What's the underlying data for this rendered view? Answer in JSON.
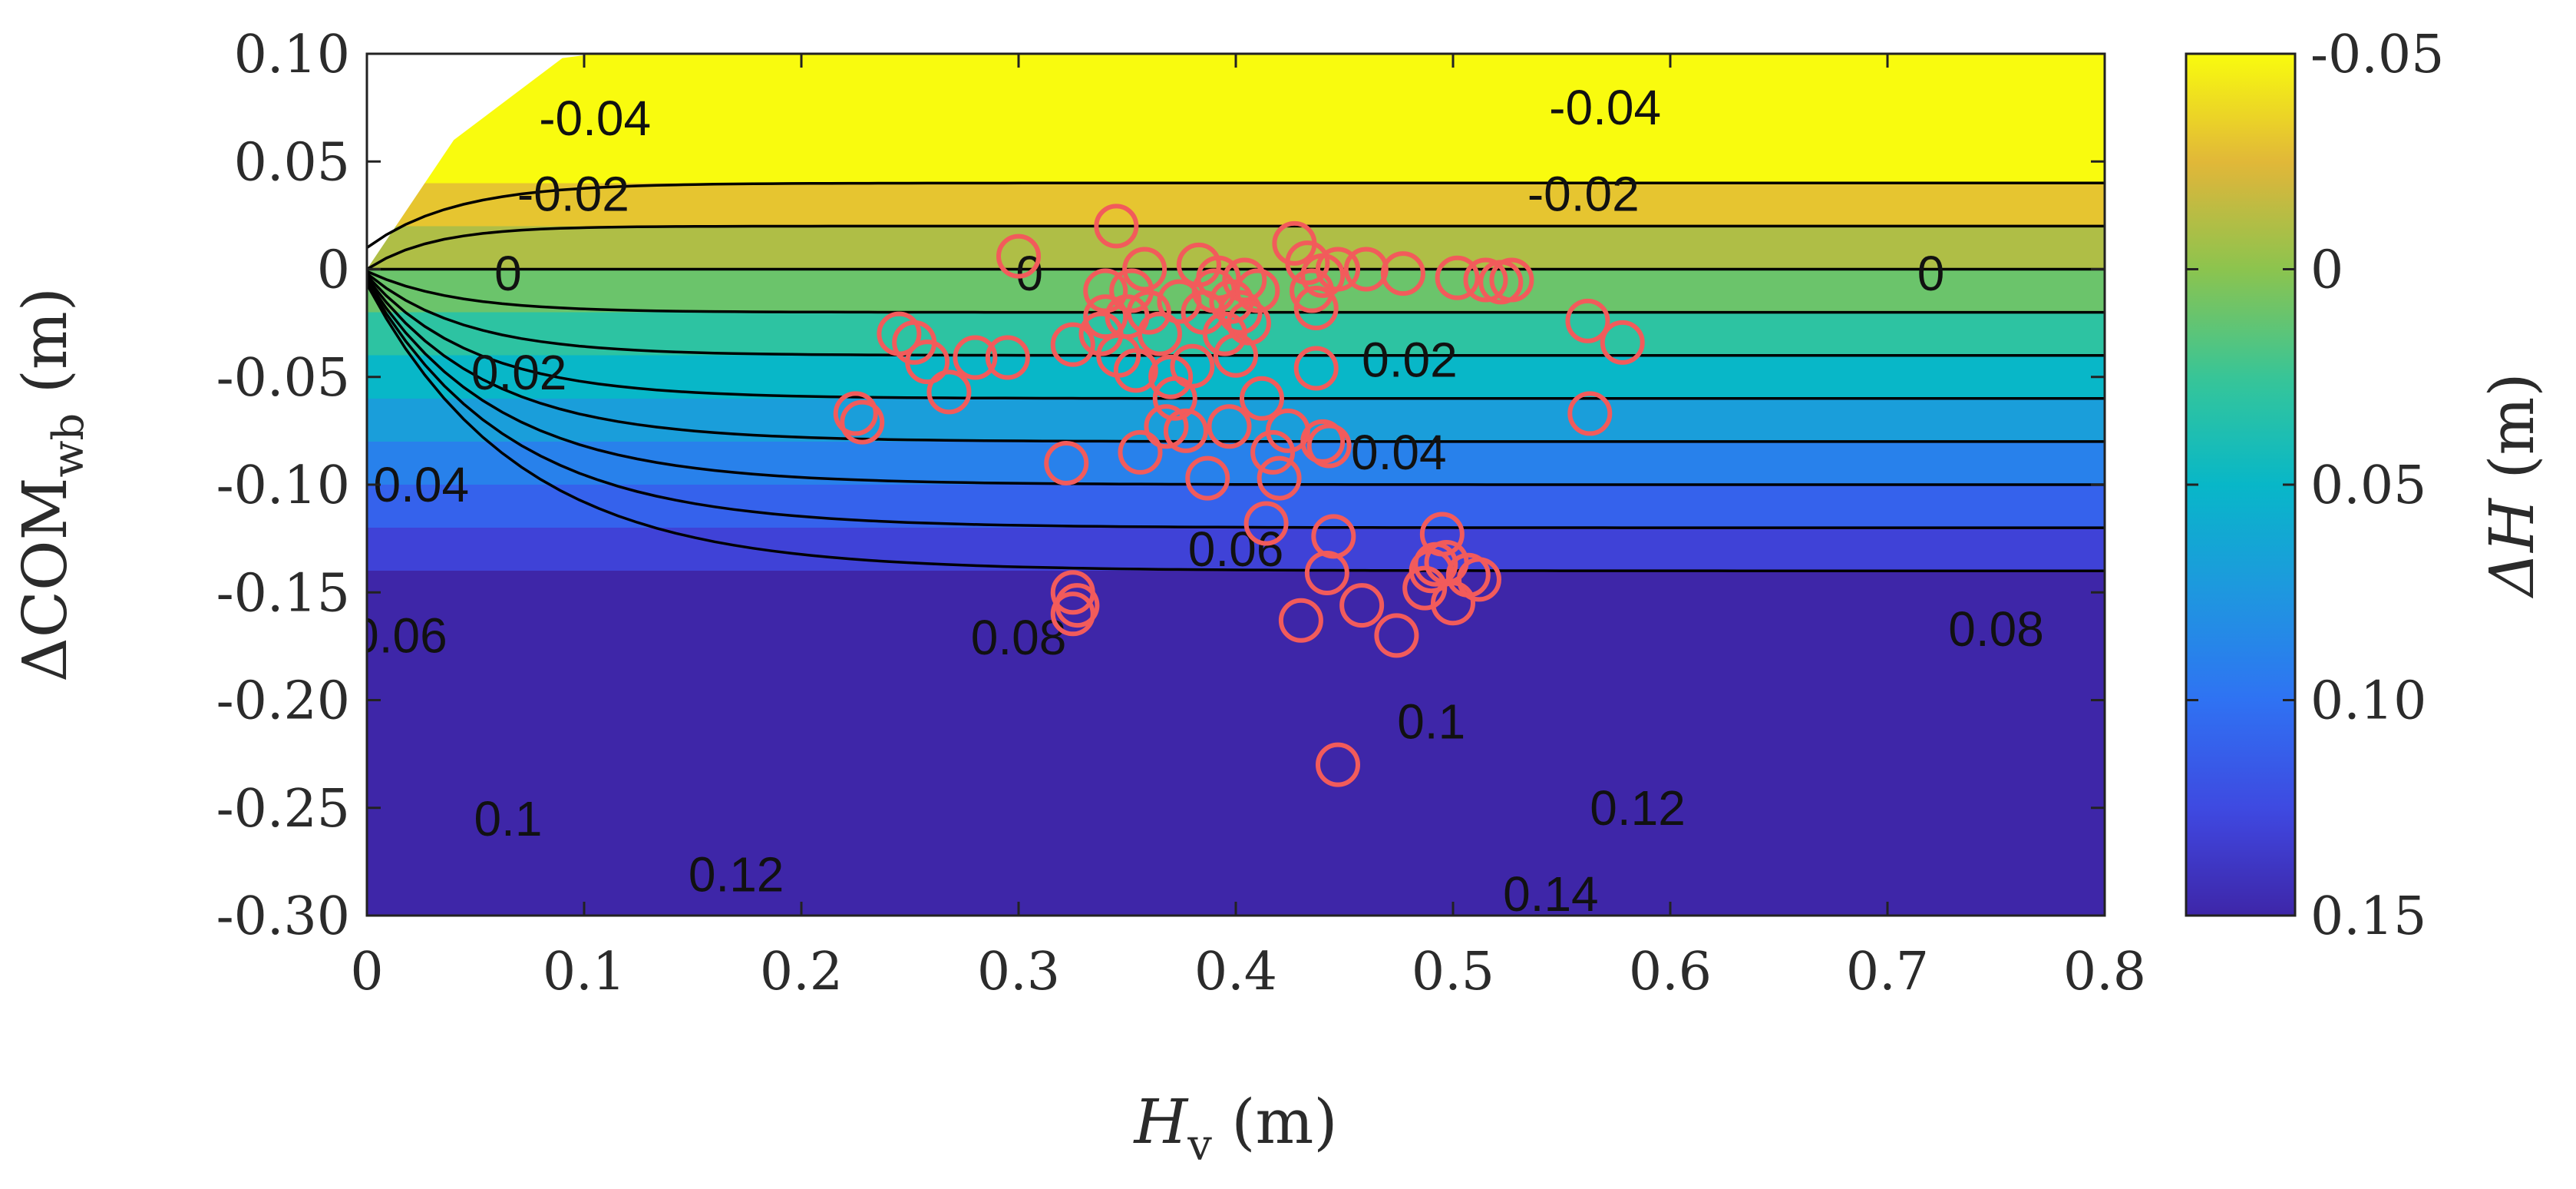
{
  "chart_data": {
    "type": "contour",
    "xlabel": {
      "main": "H",
      "sub": "v",
      "unit": " (m)"
    },
    "ylabel": {
      "main": "ΔCOM",
      "sub": "wb",
      "unit": " (m)"
    },
    "colorbar_label": {
      "main": "ΔH",
      "unit": " (m)"
    },
    "xlim": [
      0,
      0.8
    ],
    "ylim": [
      -0.3,
      0.1
    ],
    "x_ticks": [
      0,
      0.1,
      0.2,
      0.3,
      0.4,
      0.5,
      0.6,
      0.7,
      0.8
    ],
    "x_tick_labels": [
      "0",
      "0.1",
      "0.2",
      "0.3",
      "0.4",
      "0.5",
      "0.6",
      "0.7",
      "0.8"
    ],
    "y_ticks": [
      0.1,
      0.05,
      0,
      -0.05,
      -0.1,
      -0.15,
      -0.2,
      -0.25,
      -0.3
    ],
    "y_tick_labels": [
      "0.10",
      "0.05",
      "0",
      "-0.05",
      "-0.10",
      "-0.15",
      "-0.20",
      "-0.25",
      "-0.30"
    ],
    "colorbar": {
      "range": [
        -0.05,
        0.15
      ],
      "reversed": true,
      "ticks": [
        -0.05,
        0,
        0.05,
        0.1,
        0.15
      ],
      "tick_labels": [
        "-0.05",
        "0",
        "0.05",
        "0.10",
        "0.15"
      ],
      "colormap": "parula"
    },
    "contour_levels": [
      {
        "value": -0.04,
        "labels": [
          {
            "text": "-0.04",
            "x": 0.105,
            "y": 0.07
          },
          {
            "text": "-0.04",
            "x": 0.57,
            "y": 0.075
          }
        ]
      },
      {
        "value": -0.02,
        "labels": [
          {
            "text": "-0.02",
            "x": 0.095,
            "y": 0.035
          },
          {
            "text": "-0.02",
            "x": 0.56,
            "y": 0.035
          }
        ]
      },
      {
        "value": 0,
        "labels": [
          {
            "text": "0",
            "x": 0.065,
            "y": -0.002
          },
          {
            "text": "0",
            "x": 0.305,
            "y": -0.002
          },
          {
            "text": "0",
            "x": 0.72,
            "y": -0.002
          }
        ]
      },
      {
        "value": 0.02,
        "labels": [
          {
            "text": "0.02",
            "x": 0.07,
            "y": -0.048
          },
          {
            "text": "0.02",
            "x": 0.48,
            "y": -0.042
          }
        ]
      },
      {
        "value": 0.04,
        "labels": [
          {
            "text": "0.04",
            "x": 0.025,
            "y": -0.1
          },
          {
            "text": "0.04",
            "x": 0.475,
            "y": -0.085
          }
        ]
      },
      {
        "value": 0.06,
        "labels": [
          {
            "text": "0.06",
            "x": 0.015,
            "y": -0.17
          },
          {
            "text": "0.06",
            "x": 0.4,
            "y": -0.13
          }
        ]
      },
      {
        "value": 0.08,
        "labels": [
          {
            "text": "0.08",
            "x": 0.3,
            "y": -0.171
          },
          {
            "text": "0.08",
            "x": 0.75,
            "y": -0.167
          }
        ]
      },
      {
        "value": 0.1,
        "labels": [
          {
            "text": "0.1",
            "x": 0.065,
            "y": -0.255
          },
          {
            "text": "0.1",
            "x": 0.49,
            "y": -0.21
          }
        ]
      },
      {
        "value": 0.12,
        "labels": [
          {
            "text": "0.12",
            "x": 0.17,
            "y": -0.281
          },
          {
            "text": "0.12",
            "x": 0.585,
            "y": -0.25
          }
        ]
      },
      {
        "value": 0.14,
        "labels": [
          {
            "text": "0.14",
            "x": 0.545,
            "y": -0.29
          }
        ]
      }
    ],
    "scatter": {
      "marker": "open-circle",
      "color": "#f25b5b",
      "points": [
        [
          0.225,
          -0.067
        ],
        [
          0.228,
          -0.071
        ],
        [
          0.245,
          -0.03
        ],
        [
          0.252,
          -0.034
        ],
        [
          0.258,
          -0.043
        ],
        [
          0.268,
          -0.057
        ],
        [
          0.28,
          -0.041
        ],
        [
          0.295,
          -0.041
        ],
        [
          0.3,
          0.006
        ],
        [
          0.322,
          -0.09
        ],
        [
          0.325,
          -0.035
        ],
        [
          0.325,
          -0.15
        ],
        [
          0.327,
          -0.156
        ],
        [
          0.325,
          -0.16
        ],
        [
          0.338,
          -0.03
        ],
        [
          0.34,
          -0.01
        ],
        [
          0.34,
          -0.022
        ],
        [
          0.345,
          0.02
        ],
        [
          0.346,
          -0.04
        ],
        [
          0.35,
          -0.022
        ],
        [
          0.352,
          -0.01
        ],
        [
          0.354,
          -0.047
        ],
        [
          0.356,
          -0.085
        ],
        [
          0.358,
          0.0
        ],
        [
          0.36,
          -0.02
        ],
        [
          0.365,
          -0.03
        ],
        [
          0.368,
          -0.073
        ],
        [
          0.37,
          -0.05
        ],
        [
          0.372,
          -0.06
        ],
        [
          0.374,
          -0.015
        ],
        [
          0.377,
          -0.075
        ],
        [
          0.38,
          -0.045
        ],
        [
          0.383,
          0.002
        ],
        [
          0.385,
          -0.02
        ],
        [
          0.387,
          -0.097
        ],
        [
          0.39,
          -0.01
        ],
        [
          0.392,
          -0.004
        ],
        [
          0.395,
          -0.03
        ],
        [
          0.397,
          -0.073
        ],
        [
          0.398,
          -0.015
        ],
        [
          0.4,
          -0.04
        ],
        [
          0.402,
          -0.02
        ],
        [
          0.404,
          -0.005
        ],
        [
          0.406,
          -0.025
        ],
        [
          0.41,
          -0.01
        ],
        [
          0.412,
          -0.06
        ],
        [
          0.414,
          -0.118
        ],
        [
          0.417,
          -0.085
        ],
        [
          0.42,
          -0.097
        ],
        [
          0.424,
          -0.075
        ],
        [
          0.427,
          0.012
        ],
        [
          0.43,
          -0.163
        ],
        [
          0.433,
          0.003
        ],
        [
          0.435,
          -0.01
        ],
        [
          0.437,
          -0.046
        ],
        [
          0.437,
          -0.018
        ],
        [
          0.44,
          -0.08
        ],
        [
          0.442,
          -0.141
        ],
        [
          0.443,
          -0.082
        ],
        [
          0.445,
          -0.124
        ],
        [
          0.447,
          -0.23
        ],
        [
          0.44,
          -0.003
        ],
        [
          0.447,
          0.0
        ],
        [
          0.458,
          -0.156
        ],
        [
          0.46,
          0.0
        ],
        [
          0.474,
          -0.17
        ],
        [
          0.477,
          -0.002
        ],
        [
          0.487,
          -0.148
        ],
        [
          0.49,
          -0.14
        ],
        [
          0.492,
          -0.137
        ],
        [
          0.495,
          -0.123
        ],
        [
          0.497,
          -0.136
        ],
        [
          0.5,
          -0.155
        ],
        [
          0.502,
          -0.004
        ],
        [
          0.507,
          -0.142
        ],
        [
          0.512,
          -0.144
        ],
        [
          0.515,
          -0.005
        ],
        [
          0.522,
          -0.006
        ],
        [
          0.527,
          -0.005
        ],
        [
          0.562,
          -0.024
        ],
        [
          0.563,
          -0.067
        ],
        [
          0.578,
          -0.034
        ]
      ]
    }
  }
}
